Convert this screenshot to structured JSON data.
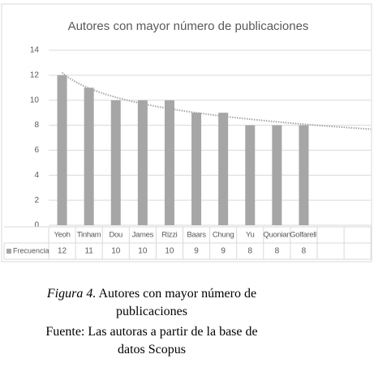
{
  "chart_data": {
    "type": "bar",
    "title": "Autores con mayor número de publicaciones",
    "categories": [
      "Yeoh",
      "Tinham",
      "Dou",
      "James",
      "Rizzi",
      "Baars",
      "Chung",
      "Yu",
      "Quonian",
      "Golfarelli",
      null,
      null
    ],
    "series": [
      {
        "name": "Frecuencia",
        "color": "#a6a6a6",
        "values": [
          12,
          11,
          10,
          10,
          10,
          9,
          9,
          8,
          8,
          8,
          null,
          null
        ]
      }
    ],
    "ylim": [
      0,
      14
    ],
    "yticks": [
      0,
      2,
      4,
      6,
      8,
      10,
      12,
      14
    ],
    "grid": true,
    "trendline": "logarithmic",
    "data_table": true
  },
  "caption": {
    "label": "Figura 4.",
    "line1": " Autores con mayor número de",
    "line2": "publicaciones",
    "line3": "Fuente: Las autoras a partir de la base de",
    "line4": "datos Scopus"
  }
}
